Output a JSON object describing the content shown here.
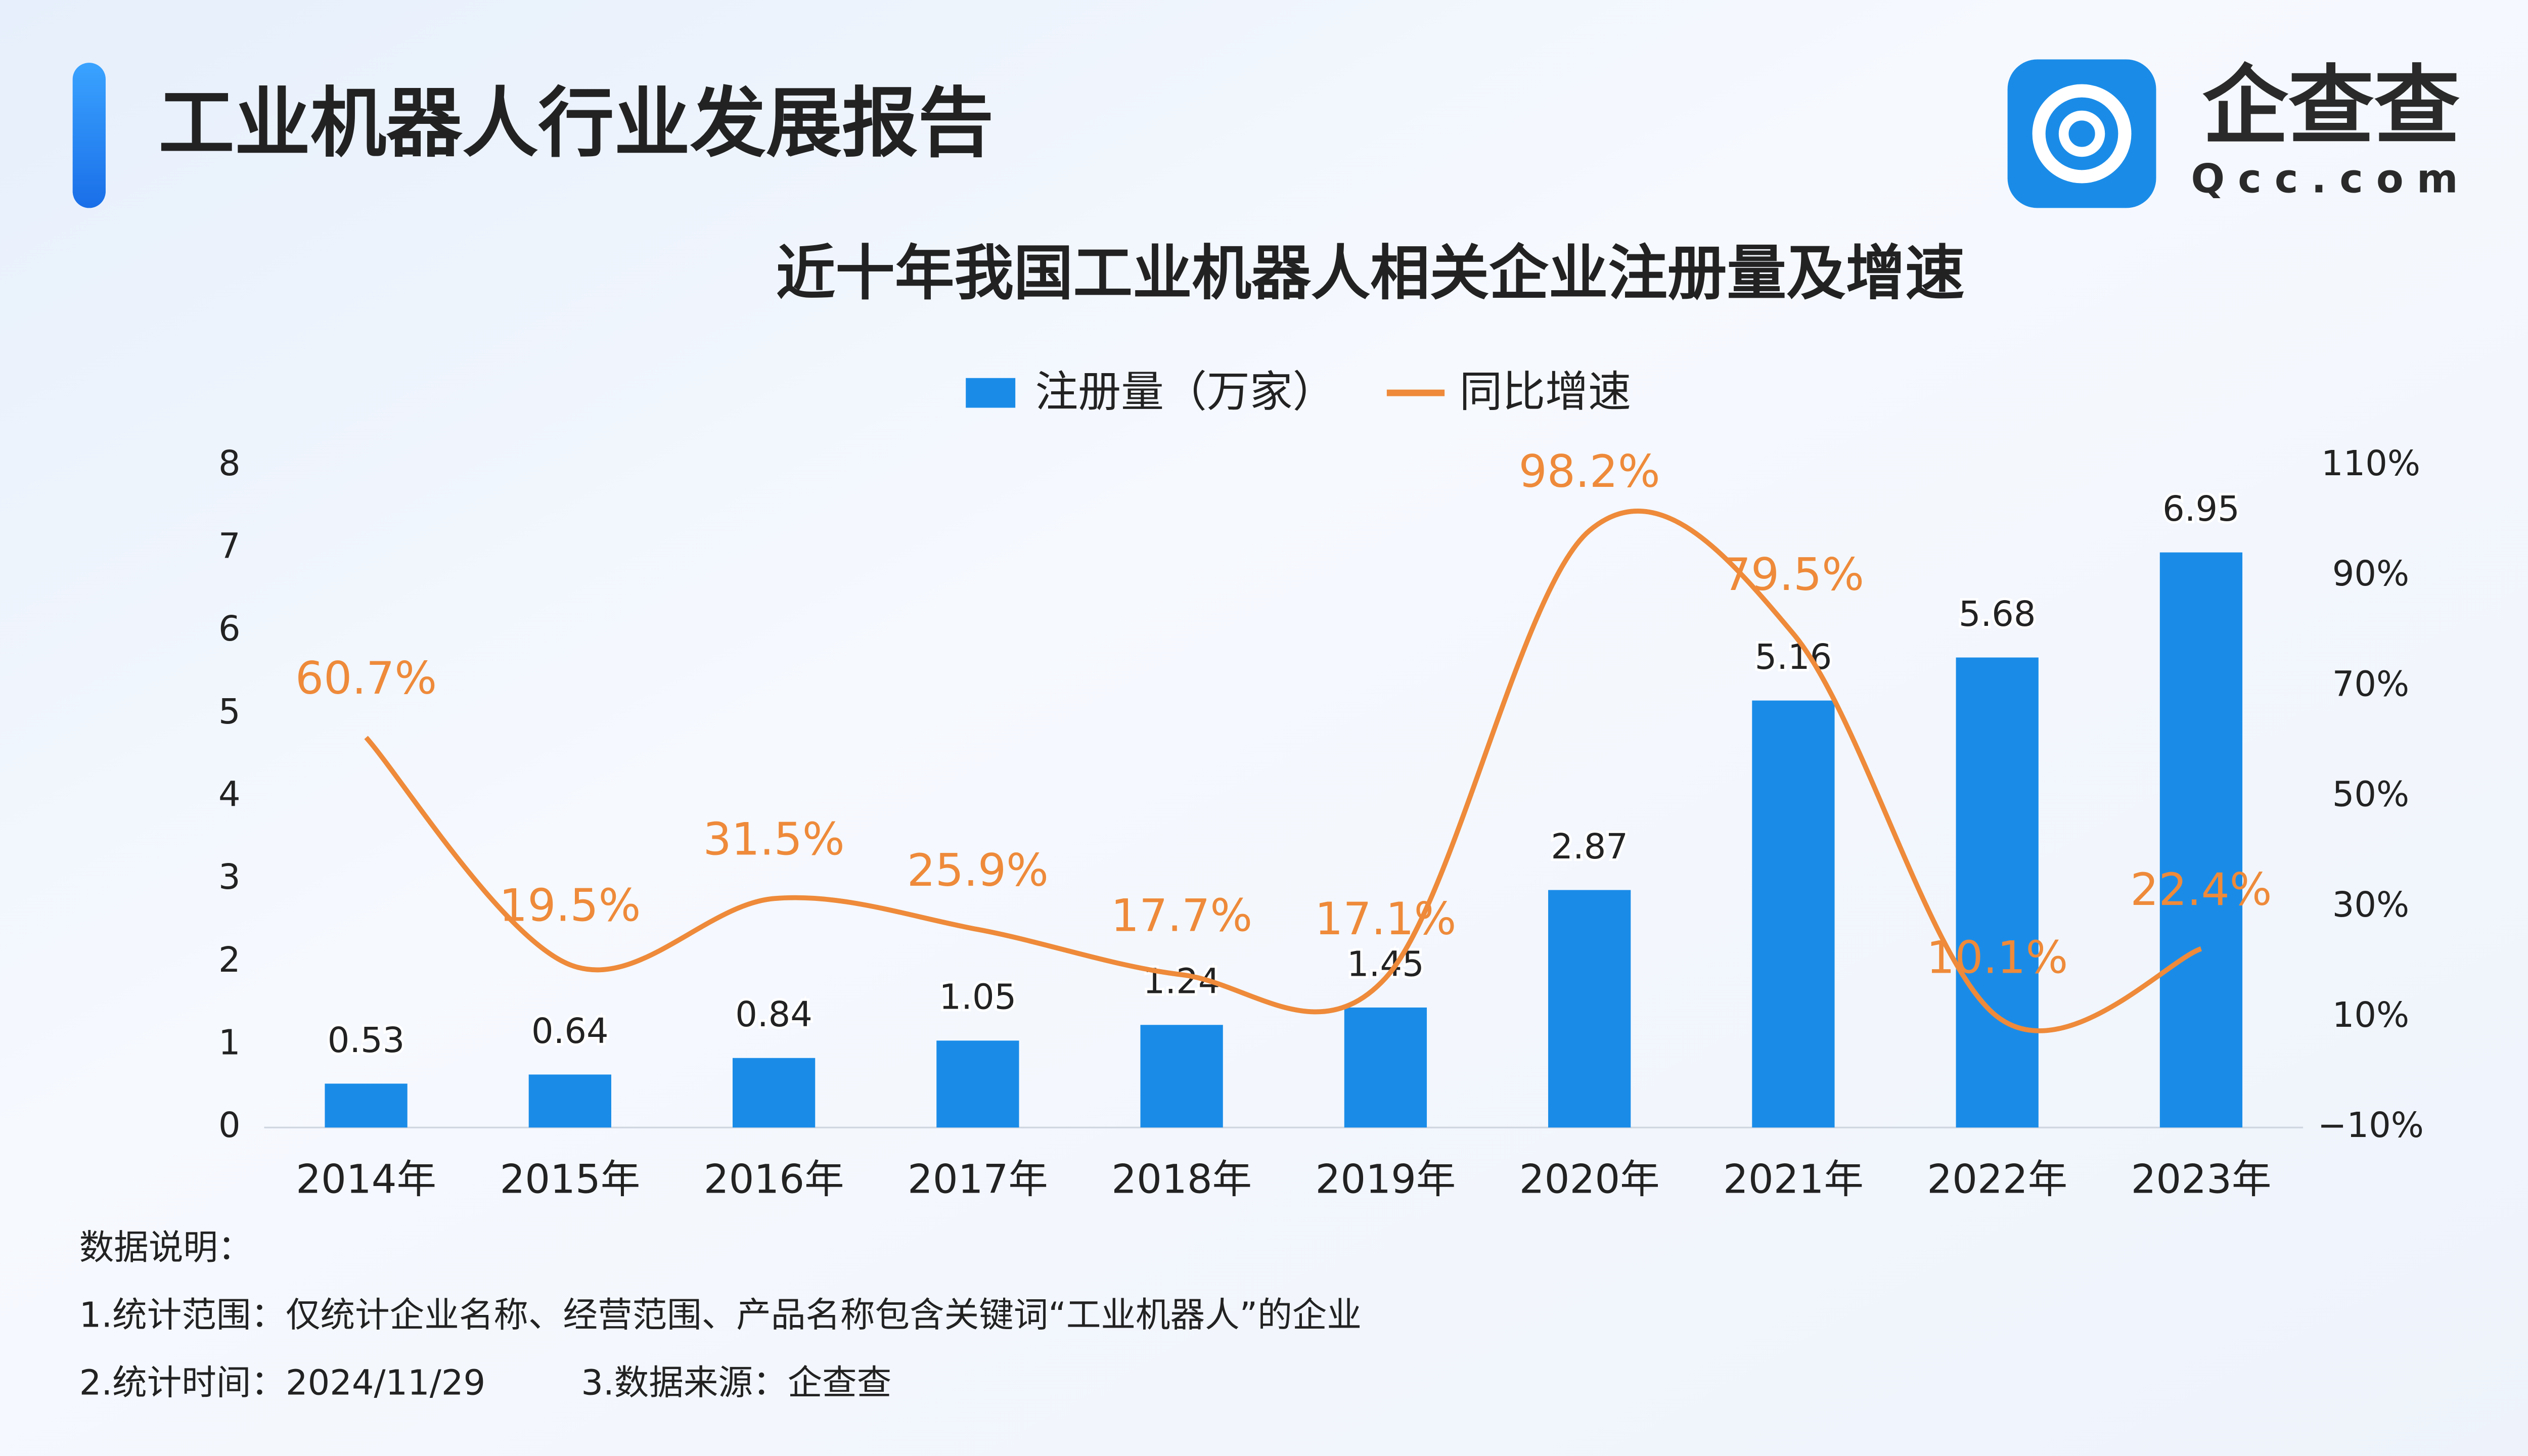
{
  "header": {
    "title": "工业机器人行业发展报告",
    "logo_name": "企查查",
    "logo_url": "Qcc.com"
  },
  "chart_data": {
    "type": "bar",
    "title": "近十年我国工业机器人相关企业注册量及增速",
    "categories": [
      "2014年",
      "2015年",
      "2016年",
      "2017年",
      "2018年",
      "2019年",
      "2020年",
      "2021年",
      "2022年",
      "2023年"
    ],
    "series": [
      {
        "name": "注册量（万家）",
        "type": "bar",
        "color": "#1a8ce8",
        "values": [
          0.53,
          0.64,
          0.84,
          1.05,
          1.24,
          1.45,
          2.87,
          5.16,
          5.68,
          6.95
        ]
      },
      {
        "name": "同比增速",
        "type": "line",
        "axis": "y2",
        "color": "#ee8a3a",
        "values": [
          60.7,
          19.5,
          31.5,
          25.9,
          17.7,
          17.1,
          98.2,
          79.5,
          10.1,
          22.4
        ],
        "value_labels": [
          "60.7%",
          "19.5%",
          "31.5%",
          "25.9%",
          "17.7%",
          "17.1%",
          "98.2%",
          "79.5%",
          "10.1%",
          "22.4%"
        ]
      }
    ],
    "ylim": [
      0,
      8
    ],
    "yticks": [
      0,
      1,
      2,
      3,
      4,
      5,
      6,
      7,
      8
    ],
    "y2lim": [
      -10,
      110
    ],
    "y2ticks": [
      {
        "value": -10,
        "label": "−10%"
      },
      {
        "value": 10,
        "label": "10%"
      },
      {
        "value": 30,
        "label": "30%"
      },
      {
        "value": 50,
        "label": "50%"
      },
      {
        "value": 70,
        "label": "70%"
      },
      {
        "value": 90,
        "label": "90%"
      },
      {
        "value": 110,
        "label": "110%"
      }
    ],
    "legend": "top"
  },
  "notes": {
    "heading": "数据说明：",
    "lines": [
      "1.统计范围：仅统计企业名称、经营范围、产品名称包含关键词“工业机器人”的企业",
      "2.统计时间：2024/11/29",
      "3.数据来源：企查查"
    ]
  }
}
